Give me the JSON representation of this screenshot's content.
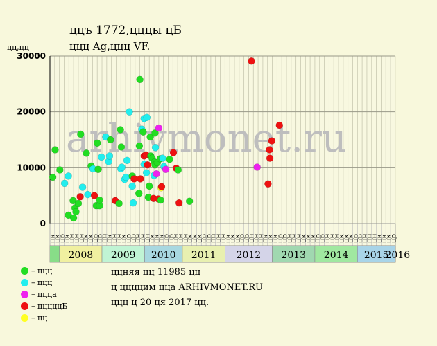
{
  "header": {
    "title": "ццъ 1772,цццы цБ",
    "subtitle": "ццц Ag,ццц VF.",
    "y_unit": "цц,цц"
  },
  "watermark": "arhivmonet.ru",
  "footer": {
    "line1": "ццняя цц 11985 цц",
    "line2": "ц ццццим цца ARHIVMONET.RU",
    "line3": "ццц ц 20 ця 2017 цц."
  },
  "colors": {
    "background": "#f8f8dc",
    "grid": "#c8c8b0",
    "green": "#22dd22",
    "cyan": "#22eeee",
    "magenta": "#ee22ee",
    "red": "#ee1111",
    "yellow": "#ffff22",
    "watermark": "#bebebe"
  },
  "legend": [
    {
      "label": "– ццц",
      "color": "#22dd22"
    },
    {
      "label": "– ццц",
      "color": "#22eeee"
    },
    {
      "label": "– ццца",
      "color": "#ee22ee"
    },
    {
      "label": "– цццццБ",
      "color": "#ee1111"
    },
    {
      "label": "– цц",
      "color": "#ffff22"
    }
  ],
  "chart_data": {
    "type": "scatter",
    "title": "ццъ 1772,цццы цБ",
    "ylabel": "цц,цц",
    "ylim": [
      0,
      30000
    ],
    "yticks": [
      0,
      10000,
      20000,
      30000
    ],
    "grid": true,
    "legend_position": "bottom-left",
    "months": [
      "цк",
      "цк",
      "цр",
      "цк",
      "цн",
      "цн",
      "цн",
      "цк",
      "цк",
      "цр",
      "цр",
      "цн",
      "цк",
      "цн",
      "цн",
      "цк",
      "цр",
      "цр",
      "цн",
      "цн",
      "цн",
      "цк",
      "цк",
      "цк",
      "цр",
      "цр",
      "цн",
      "цн",
      "цн",
      "цк",
      "цк",
      "цк",
      "цр",
      "цр",
      "цн",
      "цн",
      "цн",
      "цк",
      "цк",
      "цк",
      "цр",
      "цр",
      "цн",
      "цн",
      "цн",
      "цк",
      "цк",
      "цк",
      "цр",
      "цр",
      "цн",
      "цн",
      "цн",
      "цк",
      "цк",
      "цк",
      "цр",
      "цр",
      "цн",
      "цн",
      "цн",
      "цк",
      "цк",
      "цк",
      "цр",
      "цр",
      "цн",
      "цн",
      "цн",
      "цк",
      "цк",
      "цк",
      "цр"
    ],
    "years": [
      {
        "label": "2008",
        "start": 2,
        "end": 11,
        "color": "#f0f0a0"
      },
      {
        "label": "2009",
        "start": 11,
        "end": 20,
        "color": "#c0f4d4"
      },
      {
        "label": "2010",
        "start": 20,
        "end": 28,
        "color": "#a8d8e0"
      },
      {
        "label": "2011",
        "start": 28,
        "end": 37,
        "color": "#e8f0b0"
      },
      {
        "label": "2012",
        "start": 37,
        "end": 47,
        "color": "#d4d4e8"
      },
      {
        "label": "2013",
        "start": 47,
        "end": 56,
        "color": "#a0d8b0"
      },
      {
        "label": "2014",
        "start": 56,
        "end": 65,
        "color": "#a0e8a0"
      },
      {
        "label": "2015",
        "start": 65,
        "end": 74,
        "color": "#a8d4e8"
      },
      {
        "label": "2016",
        "start": 74,
        "end": 82,
        "color": "#a8d0d8"
      }
    ],
    "points": [
      {
        "x": 0.1,
        "y": 8300,
        "c": "green"
      },
      {
        "x": 0.6,
        "y": 13200,
        "c": "green"
      },
      {
        "x": 1.6,
        "y": 9600,
        "c": "green"
      },
      {
        "x": 2.6,
        "y": 7200,
        "c": "cyan"
      },
      {
        "x": 3.4,
        "y": 8500,
        "c": "cyan"
      },
      {
        "x": 3.4,
        "y": 1500,
        "c": "green"
      },
      {
        "x": 4.4,
        "y": 4100,
        "c": "green"
      },
      {
        "x": 4.5,
        "y": 1000,
        "c": "green"
      },
      {
        "x": 4.8,
        "y": 2800,
        "c": "green"
      },
      {
        "x": 5.0,
        "y": 2100,
        "c": "green"
      },
      {
        "x": 5.5,
        "y": 3600,
        "c": "green"
      },
      {
        "x": 5.9,
        "y": 4800,
        "c": "red"
      },
      {
        "x": 6.0,
        "y": 16000,
        "c": "green"
      },
      {
        "x": 6.4,
        "y": 6500,
        "c": "cyan"
      },
      {
        "x": 7.2,
        "y": 12600,
        "c": "green"
      },
      {
        "x": 7.5,
        "y": 5200,
        "c": "cyan"
      },
      {
        "x": 8.2,
        "y": 10300,
        "c": "green"
      },
      {
        "x": 8.6,
        "y": 9800,
        "c": "cyan"
      },
      {
        "x": 8.9,
        "y": 5000,
        "c": "red"
      },
      {
        "x": 9.3,
        "y": 3200,
        "c": "green"
      },
      {
        "x": 9.5,
        "y": 14400,
        "c": "green"
      },
      {
        "x": 9.7,
        "y": 9700,
        "c": "green"
      },
      {
        "x": 10.0,
        "y": 3200,
        "c": "green"
      },
      {
        "x": 10.0,
        "y": 4200,
        "c": "green"
      },
      {
        "x": 10.4,
        "y": 11900,
        "c": "cyan"
      },
      {
        "x": 11.3,
        "y": 15500,
        "c": "cyan"
      },
      {
        "x": 11.9,
        "y": 11100,
        "c": "cyan"
      },
      {
        "x": 12.1,
        "y": 12100,
        "c": "cyan"
      },
      {
        "x": 12.3,
        "y": 15000,
        "c": "green"
      },
      {
        "x": 13.3,
        "y": 4100,
        "c": "red"
      },
      {
        "x": 14.1,
        "y": 3600,
        "c": "green"
      },
      {
        "x": 14.4,
        "y": 16800,
        "c": "green"
      },
      {
        "x": 14.5,
        "y": 9800,
        "c": "cyan"
      },
      {
        "x": 14.6,
        "y": 13700,
        "c": "green"
      },
      {
        "x": 14.7,
        "y": 10100,
        "c": "cyan"
      },
      {
        "x": 15.3,
        "y": 7900,
        "c": "cyan"
      },
      {
        "x": 15.6,
        "y": 8300,
        "c": "cyan"
      },
      {
        "x": 15.8,
        "y": 11300,
        "c": "cyan"
      },
      {
        "x": 16.3,
        "y": 20000,
        "c": "cyan"
      },
      {
        "x": 16.9,
        "y": 8500,
        "c": "green"
      },
      {
        "x": 16.9,
        "y": 6700,
        "c": "cyan"
      },
      {
        "x": 17.1,
        "y": 3700,
        "c": "cyan"
      },
      {
        "x": 17.3,
        "y": 8000,
        "c": "red"
      },
      {
        "x": 18.3,
        "y": 5400,
        "c": "green"
      },
      {
        "x": 18.4,
        "y": 13900,
        "c": "green"
      },
      {
        "x": 18.5,
        "y": 25800,
        "c": "green"
      },
      {
        "x": 18.6,
        "y": 8000,
        "c": "red"
      },
      {
        "x": 18.9,
        "y": 16900,
        "c": "cyan"
      },
      {
        "x": 19.2,
        "y": 16400,
        "c": "green"
      },
      {
        "x": 19.4,
        "y": 18800,
        "c": "cyan"
      },
      {
        "x": 19.4,
        "y": 12100,
        "c": "red"
      },
      {
        "x": 19.4,
        "y": 10600,
        "c": "cyan"
      },
      {
        "x": 19.8,
        "y": 12300,
        "c": "red"
      },
      {
        "x": 19.9,
        "y": 9100,
        "c": "cyan"
      },
      {
        "x": 20.0,
        "y": 19000,
        "c": "cyan"
      },
      {
        "x": 20.1,
        "y": 10500,
        "c": "red"
      },
      {
        "x": 20.3,
        "y": 4700,
        "c": "green"
      },
      {
        "x": 20.5,
        "y": 6700,
        "c": "green"
      },
      {
        "x": 20.7,
        "y": 15500,
        "c": "green"
      },
      {
        "x": 20.8,
        "y": 12100,
        "c": "green"
      },
      {
        "x": 21.1,
        "y": 11700,
        "c": "green"
      },
      {
        "x": 21.4,
        "y": 4500,
        "c": "red"
      },
      {
        "x": 21.5,
        "y": 8600,
        "c": "cyan"
      },
      {
        "x": 21.6,
        "y": 11000,
        "c": "green"
      },
      {
        "x": 21.7,
        "y": 10500,
        "c": "green"
      },
      {
        "x": 21.7,
        "y": 16200,
        "c": "green"
      },
      {
        "x": 21.8,
        "y": 13600,
        "c": "cyan"
      },
      {
        "x": 22.0,
        "y": 8900,
        "c": "magenta"
      },
      {
        "x": 22.2,
        "y": 10900,
        "c": "green"
      },
      {
        "x": 22.4,
        "y": 4400,
        "c": "red"
      },
      {
        "x": 22.5,
        "y": 17100,
        "c": "magenta"
      },
      {
        "x": 22.8,
        "y": 11600,
        "c": "green"
      },
      {
        "x": 22.9,
        "y": 4200,
        "c": "green"
      },
      {
        "x": 23.0,
        "y": 6400,
        "c": "yellow"
      },
      {
        "x": 23.1,
        "y": 6600,
        "c": "red"
      },
      {
        "x": 23.3,
        "y": 11700,
        "c": "cyan"
      },
      {
        "x": 23.6,
        "y": 10200,
        "c": "cyan"
      },
      {
        "x": 24.0,
        "y": 9700,
        "c": "magenta"
      },
      {
        "x": 24.8,
        "y": 11500,
        "c": "green"
      },
      {
        "x": 25.6,
        "y": 12700,
        "c": "red"
      },
      {
        "x": 26.2,
        "y": 9900,
        "c": "red"
      },
      {
        "x": 26.6,
        "y": 9600,
        "c": "green"
      },
      {
        "x": 26.8,
        "y": 3700,
        "c": "red"
      },
      {
        "x": 29.0,
        "y": 4000,
        "c": "green"
      },
      {
        "x": 42.1,
        "y": 29100,
        "c": "red"
      },
      {
        "x": 43.3,
        "y": 10100,
        "c": "magenta"
      },
      {
        "x": 45.6,
        "y": 7100,
        "c": "red"
      },
      {
        "x": 45.9,
        "y": 13200,
        "c": "red"
      },
      {
        "x": 46.0,
        "y": 11700,
        "c": "red"
      },
      {
        "x": 46.4,
        "y": 14800,
        "c": "red"
      },
      {
        "x": 48.0,
        "y": 17600,
        "c": "red"
      }
    ]
  }
}
